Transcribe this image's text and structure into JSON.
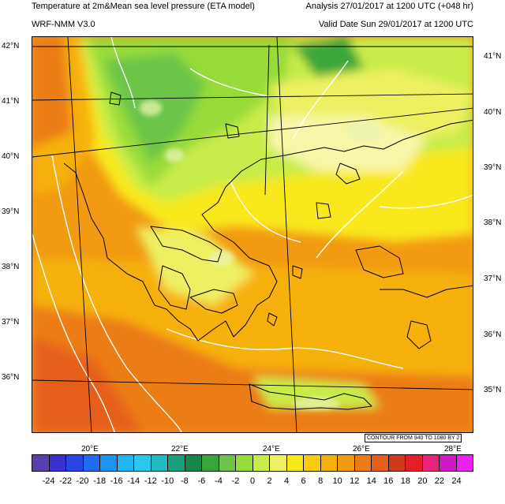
{
  "header": {
    "title_left": "Temperature at 2m&Mean sea level pressure (ETA model)",
    "title_right": "Analysis 27/01/2017 at 1200 UTC (+048 hr)",
    "subtitle_left": "WRF-NMM V3.0",
    "subtitle_right": "Valid Date Sun 29/01/2017 at 1200 UTC"
  },
  "map": {
    "lat_labels_left": [
      "42°N",
      "41°N",
      "40°N",
      "39°N",
      "38°N",
      "37°N",
      "36°N"
    ],
    "lat_labels_right": [
      "41°N",
      "40°N",
      "39°N",
      "38°N",
      "37°N",
      "36°N",
      "35°N"
    ],
    "lon_labels": [
      "20°E",
      "22°E",
      "24°E",
      "26°E",
      "28°E"
    ],
    "contour_note": "CONTOUR FROM 940 TO 1080 BY 2"
  },
  "colorbar": {
    "labels": [
      "-24",
      "-22",
      "-20",
      "-18",
      "-16",
      "-14",
      "-12",
      "-10",
      "-8",
      "-6",
      "-4",
      "-2",
      "0",
      "2",
      "4",
      "6",
      "8",
      "10",
      "12",
      "14",
      "16",
      "18",
      "20",
      "22",
      "24"
    ],
    "colors": [
      "#5a3fb0",
      "#3b2fd0",
      "#2a46e6",
      "#1f6ef0",
      "#1d94f3",
      "#21b6f4",
      "#2cc7f0",
      "#23b9c0",
      "#17a07e",
      "#16864a",
      "#3aa63a",
      "#6cc44a",
      "#98dc3a",
      "#c8ec4a",
      "#eef062",
      "#f8e81e",
      "#f8cc0c",
      "#f6b10e",
      "#f29a12",
      "#ec7c18",
      "#e6601c",
      "#cd3a1c",
      "#e61e2a",
      "#e8247a",
      "#cf19c8",
      "#ea23f0"
    ]
  }
}
